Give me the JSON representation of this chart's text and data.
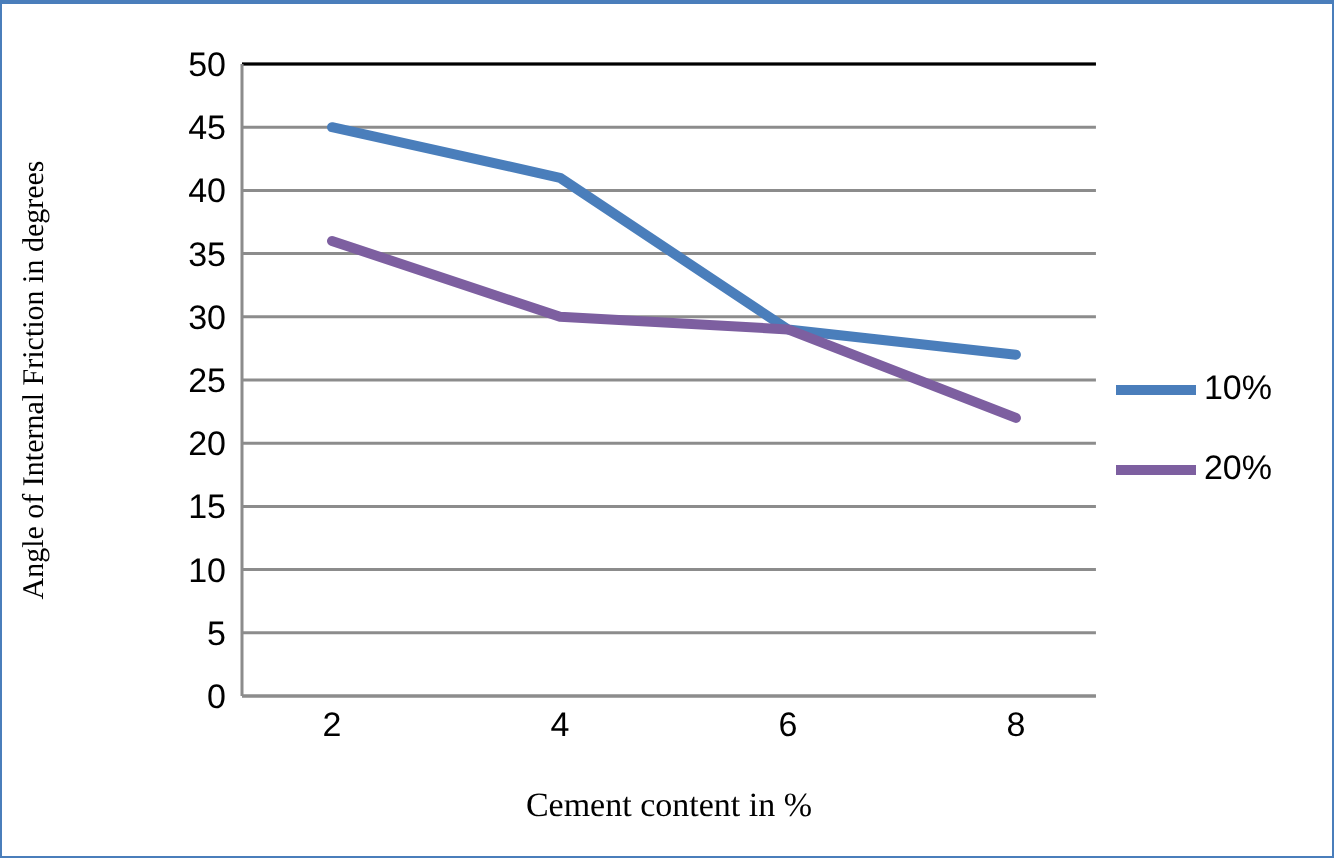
{
  "chart_data": {
    "type": "line",
    "xlabel": "Cement content in %",
    "ylabel": "Angle of Internal Friction in degrees",
    "categories": [
      "2",
      "4",
      "6",
      "8"
    ],
    "series": [
      {
        "name": "10%",
        "color": "#4a7ebb",
        "values": [
          45,
          41,
          29,
          27
        ]
      },
      {
        "name": "20%",
        "color": "#7d5fa0",
        "values": [
          36,
          30,
          29,
          22
        ]
      }
    ],
    "ylim": [
      0,
      50
    ],
    "yticks": [
      0,
      5,
      10,
      15,
      20,
      25,
      30,
      35,
      40,
      45,
      50
    ],
    "grid": "y",
    "legend": "right",
    "marker": "none",
    "line_style": "solid"
  }
}
